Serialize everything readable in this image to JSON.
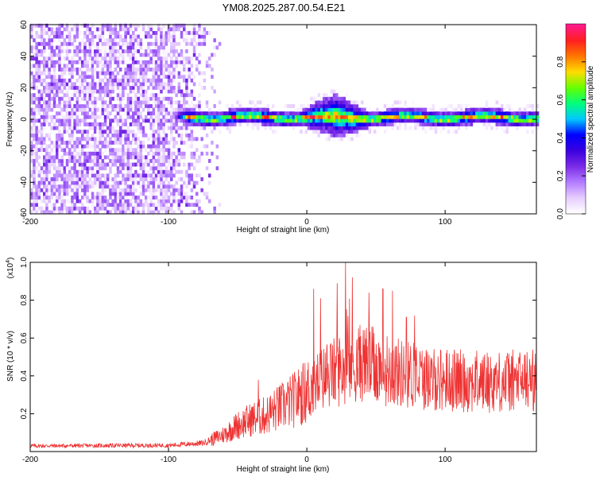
{
  "title": "YM08.2025.287.00.54.E21",
  "colors": {
    "snr_line": "#ee3333",
    "colormap": [
      "#ffffff",
      "#e6ccff",
      "#b27aff",
      "#7a2be6",
      "#3a00e0",
      "#0000ff",
      "#00c8ff",
      "#00ff7a",
      "#66ff00",
      "#ffdd00",
      "#ff7700",
      "#ff2020",
      "#ff1a8c"
    ]
  },
  "chart_data": [
    {
      "type": "heatmap",
      "name": "spectrogram",
      "xlabel": "Height of straight line (km)",
      "ylabel": "Frequency (Hz)",
      "xlim": [
        -200,
        166
      ],
      "ylim": [
        -60,
        60
      ],
      "xticks": [
        -200,
        -100,
        0,
        100
      ],
      "xtick_labels": [
        "-200",
        "-100",
        "0",
        "100"
      ],
      "yticks": [
        -60,
        -40,
        -20,
        0,
        20,
        40,
        60
      ],
      "ytick_labels": [
        "-60",
        "-40",
        "-20",
        "0",
        "20",
        "40",
        "60"
      ],
      "colorbar": {
        "label": "Normalized spectral amplitude",
        "range": [
          0,
          1
        ],
        "ticks": [
          0.0,
          0.2,
          0.4,
          0.6,
          0.8
        ],
        "tick_labels": [
          "0.0",
          "0.2",
          "0.4",
          "0.6",
          "0.8"
        ]
      },
      "regions": {
        "noise_band": {
          "x_from": -200,
          "x_to": -62,
          "mean_amplitude": 0.15
        },
        "signal_band": {
          "x_from": -100,
          "x_to": 166,
          "center_frequency_hz": 0,
          "half_width_hz": 5,
          "peak_amplitude": 1.0,
          "bulge_x": 20,
          "bulge_half_width_hz": 14
        }
      }
    },
    {
      "type": "line",
      "name": "snr",
      "xlabel": "Height of straight line (km)",
      "ylabel": "SNR (10 * v/v)",
      "y_scale_label": "(x10",
      "y_scale_exponent": "4",
      "xlim": [
        -200,
        166
      ],
      "ylim": [
        0,
        10000
      ],
      "xticks": [
        -200,
        -100,
        0,
        100
      ],
      "xtick_labels": [
        "-200",
        "-100",
        "0",
        "100"
      ],
      "yticks": [
        2000,
        4000,
        6000,
        8000,
        10000
      ],
      "ytick_labels": [
        "0.2",
        "0.4",
        "0.6",
        "0.8",
        "1.0"
      ],
      "envelope": {
        "x": [
          -200,
          -100,
          -75,
          -60,
          -50,
          -40,
          -30,
          -20,
          -10,
          0,
          10,
          20,
          30,
          40,
          50,
          60,
          70,
          80,
          90,
          100,
          120,
          140,
          166
        ],
        "y": [
          300,
          330,
          450,
          900,
          1400,
          1700,
          1900,
          2300,
          2700,
          3200,
          3800,
          4200,
          4500,
          4700,
          4500,
          4300,
          4100,
          4000,
          3850,
          3800,
          3700,
          3700,
          3800
        ]
      },
      "peaks": [
        {
          "x": 28,
          "y": 10000
        },
        {
          "x": 33,
          "y": 9200
        },
        {
          "x": 5,
          "y": 8600
        },
        {
          "x": 10,
          "y": 8100
        },
        {
          "x": 22,
          "y": 8900
        },
        {
          "x": 45,
          "y": 8400
        },
        {
          "x": 55,
          "y": 8600
        },
        {
          "x": 62,
          "y": 8500
        },
        {
          "x": 72,
          "y": 7100
        },
        {
          "x": -35,
          "y": 3800
        },
        {
          "x": -20,
          "y": 3400
        },
        {
          "x": -5,
          "y": 2900
        }
      ]
    }
  ]
}
